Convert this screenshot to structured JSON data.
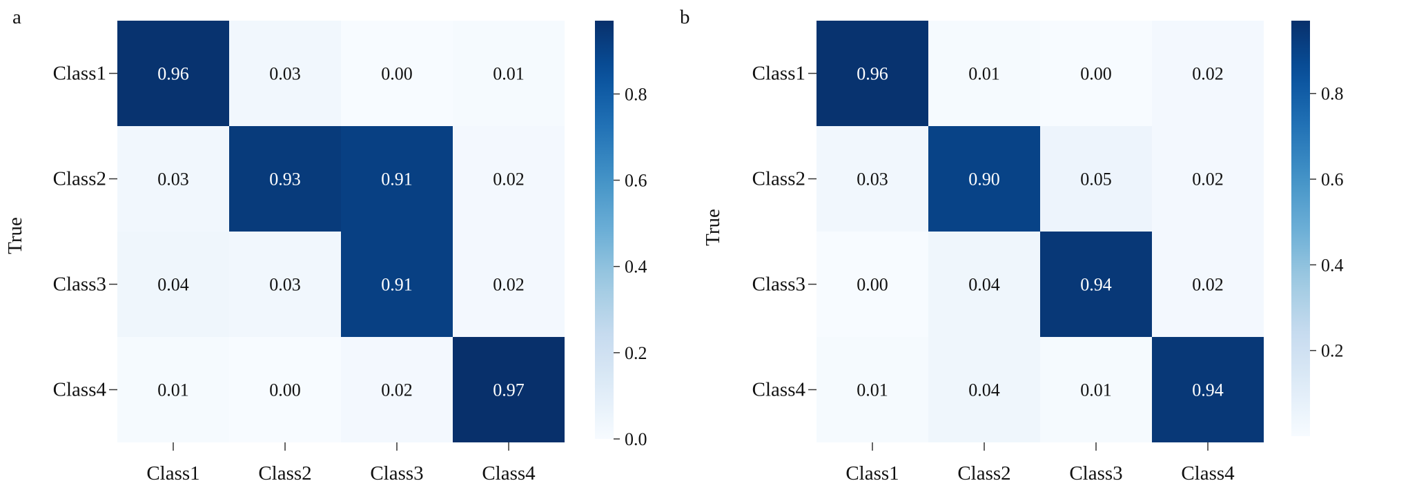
{
  "chart_data": [
    {
      "type": "heatmap",
      "panel_label": "a",
      "ylabel": "True",
      "xlabel": "",
      "row_labels": [
        "Class1",
        "Class2",
        "Class3",
        "Class4"
      ],
      "col_labels": [
        "Class1",
        "Class2",
        "Class3",
        "Class4"
      ],
      "values": [
        [
          0.96,
          0.03,
          0.0,
          0.01
        ],
        [
          0.03,
          0.93,
          0.91,
          0.02
        ],
        [
          0.04,
          0.03,
          0.91,
          0.02
        ],
        [
          0.01,
          0.0,
          0.02,
          0.97
        ]
      ],
      "colorbar": {
        "colormap": "Blues",
        "ticks": [
          "0.0",
          "0.2",
          "0.4",
          "0.6",
          "0.8"
        ],
        "range": [
          0,
          0.97
        ]
      }
    },
    {
      "type": "heatmap",
      "panel_label": "b",
      "ylabel": "True",
      "xlabel": "",
      "row_labels": [
        "Class1",
        "Class2",
        "Class3",
        "Class4"
      ],
      "col_labels": [
        "Class1",
        "Class2",
        "Class3",
        "Class4"
      ],
      "values": [
        [
          0.96,
          0.01,
          0.0,
          0.02
        ],
        [
          0.03,
          0.9,
          0.05,
          0.02
        ],
        [
          0.0,
          0.04,
          0.94,
          0.02
        ],
        [
          0.01,
          0.04,
          0.01,
          0.94
        ]
      ],
      "colorbar": {
        "colormap": "Blues",
        "ticks": [
          "0.2",
          "0.4",
          "0.6",
          "0.8"
        ],
        "range": [
          0,
          0.97
        ]
      }
    }
  ]
}
